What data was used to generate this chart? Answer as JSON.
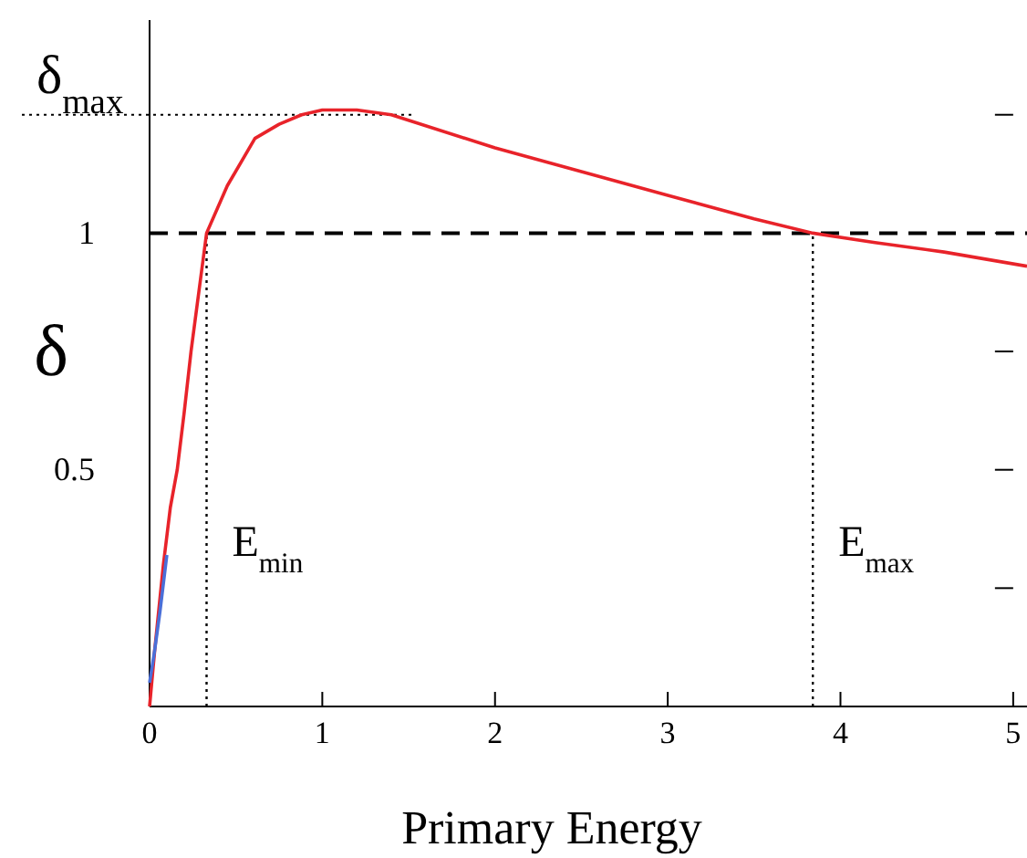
{
  "chart_data": {
    "type": "line",
    "xlabel": "Primary Energy",
    "ylabel": "δ",
    "xlim": [
      0,
      5.08
    ],
    "xticks": [
      0,
      1,
      2,
      3,
      4,
      5
    ],
    "ylim": [
      0,
      1.45
    ],
    "yticks": [
      {
        "value": 0.25,
        "label": null
      },
      0.5,
      {
        "value": 0.75,
        "label": null
      },
      1,
      {
        "value": 1.25,
        "label": null
      }
    ],
    "series": [
      {
        "color": "#e8232a",
        "x": [
          0,
          0.03,
          0.08,
          0.12,
          0.16,
          0.2,
          0.24,
          0.33,
          0.45,
          0.61,
          0.75,
          0.88,
          1.0,
          1.2,
          1.4,
          2.0,
          2.5,
          3.0,
          3.5,
          3.84,
          4.2,
          4.6,
          5.08
        ],
        "values": [
          0,
          0.12,
          0.3,
          0.42,
          0.5,
          0.62,
          0.75,
          1.0,
          1.1,
          1.2,
          1.23,
          1.25,
          1.26,
          1.26,
          1.25,
          1.18,
          1.13,
          1.08,
          1.03,
          1.0,
          0.98,
          0.96,
          0.93
        ]
      },
      {
        "color": "#4a6fd8",
        "x": [
          0,
          0.03,
          0.06,
          0.1
        ],
        "values": [
          0.05,
          0.12,
          0.2,
          0.32
        ]
      }
    ],
    "ref_lines": [
      {
        "axis": "y",
        "value": 1,
        "line_style": "dashed",
        "color": "#000000"
      },
      {
        "axis": "y",
        "value": 1.25,
        "label": "δ$_{max}$",
        "line_style": "dotted",
        "color": "#000000"
      },
      {
        "axis": "x",
        "value": 0.33,
        "label": "E$_{min}$",
        "line_style": "dotted",
        "color": "#000000"
      },
      {
        "axis": "x",
        "value": 3.84,
        "label": "E$_{max}$",
        "line_style": "dotted",
        "color": "#000000"
      }
    ],
    "grid": false,
    "marker": "none",
    "line_style": "solid"
  }
}
